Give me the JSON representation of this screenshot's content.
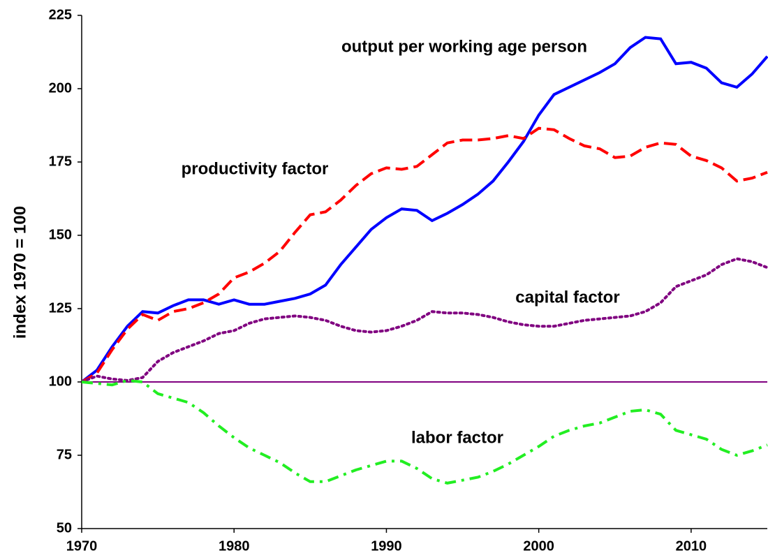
{
  "chart_data": {
    "type": "line",
    "y_label": "index 1970 = 100",
    "x": [
      1970,
      1971,
      1972,
      1973,
      1974,
      1975,
      1976,
      1977,
      1978,
      1979,
      1980,
      1981,
      1982,
      1983,
      1984,
      1985,
      1986,
      1987,
      1988,
      1989,
      1990,
      1991,
      1992,
      1993,
      1994,
      1995,
      1996,
      1997,
      1998,
      1999,
      2000,
      2001,
      2002,
      2003,
      2004,
      2005,
      2006,
      2007,
      2008,
      2009,
      2010,
      2011,
      2012,
      2013,
      2014,
      2015
    ],
    "xlim": [
      1970,
      2015
    ],
    "xticks": [
      1970,
      1980,
      1990,
      2000,
      2010
    ],
    "ylim": [
      50,
      225
    ],
    "yticks": [
      50,
      75,
      100,
      125,
      150,
      175,
      200,
      225
    ],
    "grid": false,
    "reference_line": {
      "value": 100,
      "color": "#800080"
    },
    "series": [
      {
        "name": "output per working age person",
        "color": "#0000ff",
        "style": "solid",
        "values": [
          100,
          104,
          112,
          119,
          124,
          123.5,
          126,
          128,
          128,
          126.5,
          128,
          126.5,
          126.5,
          127.5,
          128.5,
          130,
          133,
          140,
          146,
          152,
          156,
          159,
          158.5,
          155,
          157.5,
          160.5,
          164,
          168.5,
          175,
          182,
          191,
          198,
          200.5,
          203,
          205.5,
          208.5,
          214,
          217.5,
          217,
          208.5,
          209,
          207,
          202,
          200.5,
          205,
          211
        ]
      },
      {
        "name": "productivity factor",
        "color": "#ff0000",
        "style": "dashed",
        "values": [
          100,
          103,
          111,
          118,
          123,
          121,
          124,
          125,
          127,
          130,
          135.5,
          137.5,
          140.5,
          144.5,
          151,
          157,
          158,
          162,
          167,
          171,
          173,
          172.5,
          173.5,
          177.5,
          181.5,
          182.5,
          182.5,
          183,
          184,
          183,
          186.5,
          186,
          183,
          180.5,
          179.5,
          176.5,
          177,
          180,
          181.5,
          181,
          177,
          175.5,
          173,
          168.5,
          169.5,
          171.5
        ]
      },
      {
        "name": "capital factor",
        "color": "#800080",
        "style": "dotted",
        "values": [
          100,
          102,
          101,
          100.5,
          101.5,
          107,
          110,
          112,
          114,
          116.5,
          117.5,
          120,
          121.5,
          122,
          122.5,
          122,
          121,
          119,
          117.5,
          117,
          117.5,
          119,
          121,
          124,
          123.5,
          123.5,
          123,
          122,
          120.5,
          119.5,
          119,
          119,
          120,
          121,
          121.5,
          122,
          122.5,
          124,
          127,
          132.5,
          134.5,
          136.5,
          140,
          142,
          141,
          139
        ]
      },
      {
        "name": "labor factor",
        "color": "#22ee22",
        "style": "dashdot",
        "values": [
          100,
          99.5,
          99,
          100.5,
          100,
          96,
          94.5,
          93,
          89.5,
          85,
          81,
          77.5,
          75,
          72.5,
          69,
          66,
          66,
          68,
          70,
          71.5,
          73,
          73,
          70.5,
          67,
          65.5,
          66.5,
          67.5,
          69.5,
          72,
          75,
          78,
          81.5,
          83.5,
          85,
          86,
          88,
          90,
          90.5,
          89,
          83.5,
          82,
          80.5,
          77,
          75,
          76.5,
          78.5
        ]
      }
    ]
  }
}
